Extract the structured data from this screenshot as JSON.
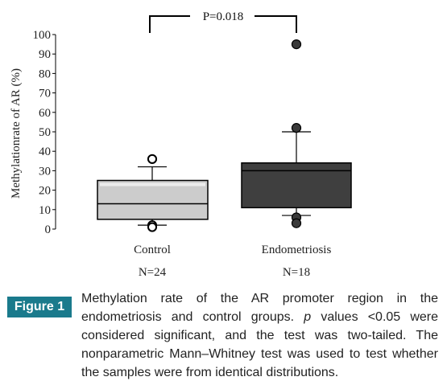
{
  "chart_data": {
    "type": "box",
    "ylabel": "Methylationrate of AR (%)",
    "ylim": [
      0,
      100
    ],
    "yticks": [
      0,
      10,
      20,
      30,
      40,
      50,
      60,
      70,
      80,
      90,
      100
    ],
    "significance": "P=0.018",
    "groups": [
      {
        "name": "Control",
        "n_label": "N=24",
        "fill": "#cccccc",
        "whisker_low": 2,
        "q1": 5,
        "median": 13,
        "q3": 25,
        "whisker_high": 32,
        "outliers": [
          36,
          36,
          2,
          1
        ]
      },
      {
        "name": "Endometriosis",
        "n_label": "N=18",
        "fill": "#3f3f3f",
        "whisker_low": 7,
        "q1": 11,
        "median": 30,
        "q3": 34,
        "whisker_high": 50,
        "outliers": [
          95,
          52,
          6,
          3
        ]
      }
    ]
  },
  "figure": {
    "label": "Figure 1",
    "label_color": "#1a7a8c",
    "caption_parts": [
      "Methylation rate of the AR promoter region in the endometriosis and control groups. ",
      "p",
      " values <0.05 were considered significant, and the test was two-tailed. The nonparametric Mann–Whitney test was used to test whether the samples were from identical distributions."
    ]
  }
}
